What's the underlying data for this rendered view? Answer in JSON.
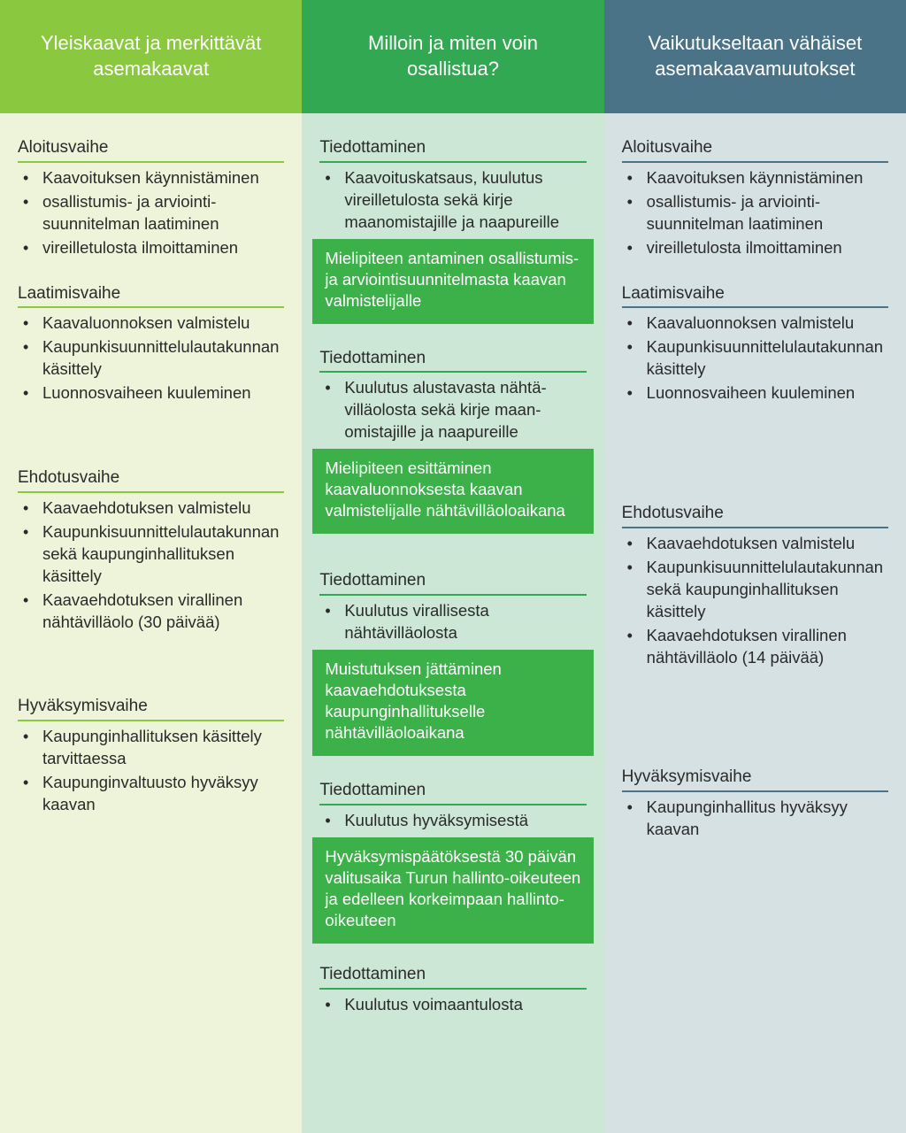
{
  "colors": {
    "col1_header_bg": "#8ac93f",
    "col2_header_bg": "#33a852",
    "col3_header_bg": "#4b7388",
    "col1_bg": "#eef4da",
    "col2_bg": "#cce7d5",
    "col3_bg": "#d6e1e4",
    "col1_underline": "#8ac93f",
    "col2_underline": "#33a852",
    "col3_underline": "#4b7388",
    "callout_bg": "#3cb149",
    "text": "#2a2a2a",
    "header_text": "#ffffff"
  },
  "columns": [
    {
      "header": "Yleiskaavat ja merkittävät asemakaavat",
      "sections": [
        {
          "title": "Aloitusvaihe",
          "bullets": [
            "Kaavoituksen käynnistäminen",
            "osallistumis- ja arviointi­suunnitelman laatiminen",
            "vireilletulosta ilmoittaminen"
          ]
        },
        {
          "title": "Laatimisvaihe",
          "bullets": [
            "Kaavaluonnoksen valmistelu",
            "Kaupunkisuunnittelulauta­kunnan käsittely",
            "Luonnosvaiheen kuuleminen"
          ]
        },
        {
          "title": "Ehdotusvaihe",
          "bullets": [
            "Kaavaehdotuksen valmistelu",
            "Kaupunkisuunnittelulauta­kunnan sekä kaupungin­hallituksen käsittely",
            "Kaavaehdotuksen virallinen nähtävilläolo (30 päivää)"
          ]
        },
        {
          "title": "Hyväksymisvaihe",
          "bullets": [
            "Kaupunginhallituksen käsittely tarvittaessa",
            "Kaupunginvaltuusto hyväksyy kaavan"
          ]
        }
      ]
    },
    {
      "header": "Milloin ja miten voin osallistua?",
      "sections": [
        {
          "title": "Tiedottaminen",
          "bullets": [
            "Kaavoituskatsaus, kuulutus vireilletulosta sekä kirje maanomistajille ja naapureille"
          ],
          "callout": "Mielipiteen antaminen osallistumis- ja arviointi­suunnitelmasta kaavan valmistelijalle"
        },
        {
          "title": "Tiedottaminen",
          "bullets": [
            "Kuulutus alustavasta nähtä­villäolosta sekä kirje maan­omistajille ja naapureille"
          ],
          "callout": "Mielipiteen esittäminen kaavaluonnoksesta kaavan valmistelijalle nähtävilläolo­aikana"
        },
        {
          "title": "Tiedottaminen",
          "bullets": [
            "Kuulutus virallisesta nähtävilläolosta"
          ],
          "callout": "Muistutuksen jättäminen kaavaehdotuksesta kaupunginhallitukselle nähtävilläoloaikana"
        },
        {
          "title": "Tiedottaminen",
          "bullets": [
            "Kuulutus hyväksymisestä"
          ],
          "callout": "Hyväksymispäätöksestä 30 päivän valitusaika Turun hallinto-oikeuteen ja edelleen korkeimpaan hallinto-oikeuteen"
        },
        {
          "title": "Tiedottaminen",
          "bullets": [
            "Kuulutus voimaantulosta"
          ]
        }
      ]
    },
    {
      "header": "Vaikutukseltaan vähäiset asema­kaavamuutokset",
      "sections": [
        {
          "title": "Aloitusvaihe",
          "bullets": [
            "Kaavoituksen käynnistäminen",
            "osallistumis- ja arviointi­suunnitelman laatiminen",
            "vireilletulosta ilmoittaminen"
          ]
        },
        {
          "title": "Laatimisvaihe",
          "bullets": [
            "Kaavaluonnoksen valmistelu",
            "Kaupunkisuunnittelulauta­kunnan käsittely",
            "Luonnosvaiheen kuuleminen"
          ]
        },
        {
          "title": "Ehdotusvaihe",
          "bullets": [
            "Kaavaehdotuksen valmistelu",
            "Kaupunkisuunnittelulauta­kunnan sekä kaupungin­hallituksen käsittely",
            "Kaavaehdotuksen virallinen nähtävilläolo (14 päivää)"
          ]
        },
        {
          "title": "Hyväksymisvaihe",
          "bullets": [
            "Kaupunginhallitus hyväksyy kaavan"
          ]
        }
      ]
    }
  ],
  "section_spacing": [
    [
      0,
      44,
      44,
      0
    ],
    [
      0,
      14,
      0,
      -4,
      0
    ],
    [
      0,
      84,
      84,
      0
    ]
  ]
}
